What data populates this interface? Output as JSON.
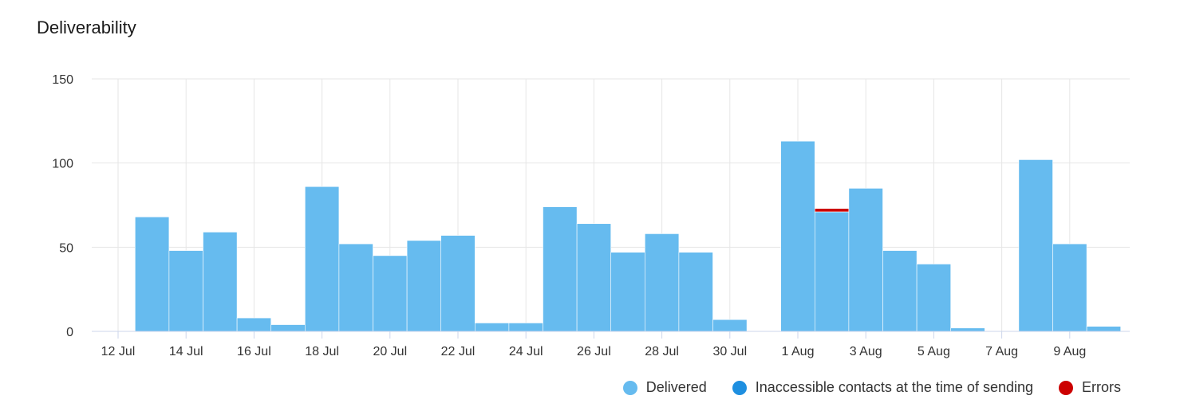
{
  "title": "Deliverability",
  "legend": [
    {
      "label": "Delivered",
      "color": "#66bbef"
    },
    {
      "label": "Inaccessible contacts at the time of sending",
      "color": "#1e8fe0"
    },
    {
      "label": "Errors",
      "color": "#cc0000"
    }
  ],
  "chart_data": {
    "type": "bar",
    "stacked": true,
    "x_start_day": 12,
    "categories": [
      "12 Jul",
      "13 Jul",
      "14 Jul",
      "15 Jul",
      "16 Jul",
      "17 Jul",
      "18 Jul",
      "19 Jul",
      "20 Jul",
      "21 Jul",
      "22 Jul",
      "23 Jul",
      "24 Jul",
      "25 Jul",
      "26 Jul",
      "27 Jul",
      "28 Jul",
      "29 Jul",
      "30 Jul",
      "31 Jul",
      "1 Aug",
      "2 Aug",
      "3 Aug",
      "4 Aug",
      "5 Aug",
      "6 Aug",
      "7 Aug",
      "8 Aug",
      "9 Aug",
      "10 Aug"
    ],
    "tick_labels": [
      "12 Jul",
      "14 Jul",
      "16 Jul",
      "18 Jul",
      "20 Jul",
      "22 Jul",
      "24 Jul",
      "26 Jul",
      "28 Jul",
      "30 Jul",
      "1 Aug",
      "3 Aug",
      "5 Aug",
      "7 Aug",
      "9 Aug"
    ],
    "series": [
      {
        "name": "Delivered",
        "color": "#66bbef",
        "values": [
          0,
          68,
          48,
          59,
          8,
          4,
          86,
          52,
          45,
          54,
          57,
          5,
          5,
          74,
          64,
          47,
          58,
          47,
          7,
          0,
          113,
          71,
          85,
          48,
          40,
          2,
          0,
          102,
          52,
          3
        ]
      },
      {
        "name": "Inaccessible contacts at the time of sending",
        "color": "#1e8fe0",
        "values": [
          0,
          0,
          0,
          0,
          0,
          0,
          0,
          0,
          0,
          0,
          0,
          0,
          0,
          0,
          0,
          0,
          0,
          0,
          0,
          0,
          0,
          0,
          0,
          0,
          0,
          0,
          0,
          0,
          0,
          0
        ]
      },
      {
        "name": "Errors",
        "color": "#cc0000",
        "values": [
          0,
          0,
          0,
          0,
          0,
          0,
          0,
          0,
          0,
          0,
          0,
          0,
          0,
          0,
          0,
          0,
          0,
          0,
          0,
          0,
          0,
          2,
          0,
          0,
          0,
          0,
          0,
          0,
          0,
          0
        ]
      }
    ],
    "ylim": [
      0,
      150
    ],
    "yticks": [
      0,
      50,
      100,
      150
    ],
    "grid": true,
    "legend_position": "bottom-right"
  }
}
